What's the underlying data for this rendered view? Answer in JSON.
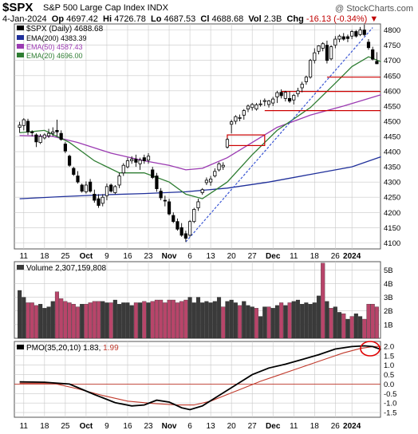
{
  "header": {
    "symbol": "$SPX",
    "description": "S&P 500 Large Cap Index  INDX",
    "source": "@ StockCharts.com",
    "date": "4-Jan-2024",
    "open_label": "Op",
    "open": "4697.42",
    "high_label": "Hi",
    "high": "4726.78",
    "low_label": "Lo",
    "low": "4687.53",
    "close_label": "Cl",
    "close": "4688.68",
    "vol_label": "Vol",
    "volume": "2.3B",
    "chg_label": "Chg",
    "change": "-16.13 (-0.34%)"
  },
  "colors": {
    "ema200": "#1f2f9a",
    "ema50": "#9b3ab2",
    "ema20": "#2e7d32",
    "trendline": "#3a56d4",
    "resistance": "#cc0000",
    "vol_up": "#3a3a3a",
    "vol_down": "#b8456a",
    "pmo": "#000000",
    "pmo_signal": "#c0392b",
    "grid": "#c8c8c8"
  },
  "legend": [
    {
      "label": "$SPX (Daily) 4688.68",
      "color": "#000000"
    },
    {
      "label": "EMA(200) 4383.39",
      "color": "#1f2f9a"
    },
    {
      "label": "EMA(50) 4587.43",
      "color": "#9b3ab2"
    },
    {
      "label": "EMA(20) 4696.00",
      "color": "#2e7d32"
    }
  ],
  "volume_panel": {
    "title": "Volume 2,307,159,808"
  },
  "pmo_panel": {
    "title": "PMO(35,20,10) 1.83, ",
    "signal_value": "1.99"
  },
  "chart_data": [
    {
      "type": "candlestick",
      "title": "$SPX (Daily)",
      "y_ticks": [
        4100,
        4150,
        4200,
        4250,
        4300,
        4350,
        4400,
        4450,
        4500,
        4550,
        4600,
        4650,
        4700,
        4750,
        4800
      ],
      "ylim": [
        4080,
        4820
      ],
      "x_labels": [
        "11",
        "18",
        "25",
        "Oct",
        "9",
        "16",
        "23",
        "Nov",
        "6",
        "13",
        "20",
        "27",
        "Dec",
        "11",
        "18",
        "26",
        "2024"
      ],
      "x_label_bars": [
        1,
        6,
        11,
        16,
        21,
        26,
        31,
        36,
        41,
        46,
        51,
        56,
        61,
        66,
        71,
        76,
        80
      ],
      "ohlc": [
        [
          4480,
          4498,
          4462,
          4487
        ],
        [
          4486,
          4510,
          4470,
          4505
        ],
        [
          4500,
          4508,
          4455,
          4465
        ],
        [
          4465,
          4470,
          4450,
          4462
        ],
        [
          4455,
          4460,
          4415,
          4432
        ],
        [
          4430,
          4458,
          4425,
          4450
        ],
        [
          4445,
          4460,
          4440,
          4455
        ],
        [
          4452,
          4475,
          4445,
          4460
        ],
        [
          4460,
          4480,
          4450,
          4465
        ],
        [
          4470,
          4505,
          4450,
          4465
        ],
        [
          4460,
          4470,
          4436,
          4440
        ],
        [
          4425,
          4432,
          4395,
          4402
        ],
        [
          4385,
          4390,
          4350,
          4355
        ],
        [
          4345,
          4350,
          4320,
          4325
        ],
        [
          4320,
          4336,
          4295,
          4300
        ],
        [
          4290,
          4295,
          4265,
          4270
        ],
        [
          4268,
          4302,
          4262,
          4290
        ],
        [
          4300,
          4310,
          4265,
          4270
        ],
        [
          4260,
          4275,
          4232,
          4240
        ],
        [
          4245,
          4260,
          4215,
          4223
        ],
        [
          4230,
          4260,
          4220,
          4250
        ],
        [
          4255,
          4295,
          4240,
          4285
        ],
        [
          4290,
          4295,
          4265,
          4270
        ],
        [
          4265,
          4290,
          4260,
          4285
        ],
        [
          4290,
          4330,
          4280,
          4320
        ],
        [
          4330,
          4362,
          4320,
          4355
        ],
        [
          4350,
          4380,
          4345,
          4370
        ],
        [
          4370,
          4385,
          4360,
          4375
        ],
        [
          4375,
          4390,
          4350,
          4365
        ],
        [
          4360,
          4380,
          4340,
          4372
        ],
        [
          4380,
          4390,
          4360,
          4370
        ],
        [
          4372,
          4395,
          4360,
          4385
        ],
        [
          4340,
          4350,
          4310,
          4315
        ],
        [
          4320,
          4330,
          4268,
          4278
        ],
        [
          4270,
          4280,
          4240,
          4248
        ],
        [
          4240,
          4255,
          4220,
          4238
        ],
        [
          4235,
          4245,
          4190,
          4195
        ],
        [
          4190,
          4200,
          4165,
          4170
        ],
        [
          4170,
          4180,
          4140,
          4145
        ],
        [
          4150,
          4165,
          4120,
          4125
        ],
        [
          4130,
          4140,
          4103,
          4115
        ],
        [
          4125,
          4175,
          4120,
          4170
        ],
        [
          4170,
          4215,
          4165,
          4210
        ],
        [
          4215,
          4245,
          4205,
          4235
        ],
        [
          4265,
          4280,
          4258,
          4275
        ],
        [
          4298,
          4315,
          4290,
          4306
        ],
        [
          4300,
          4320,
          4288,
          4310
        ],
        [
          4320,
          4345,
          4315,
          4335
        ],
        [
          4340,
          4365,
          4335,
          4360
        ],
        [
          4350,
          4365,
          4340,
          4355
        ],
        [
          4415,
          4445,
          4410,
          4440
        ],
        [
          4490,
          4505,
          4460,
          4498
        ],
        [
          4500,
          4520,
          4490,
          4515
        ],
        [
          4510,
          4522,
          4500,
          4512
        ],
        [
          4520,
          4540,
          4505,
          4535
        ],
        [
          4540,
          4555,
          4530,
          4550
        ],
        [
          4545,
          4560,
          4535,
          4555
        ],
        [
          4540,
          4560,
          4535,
          4554
        ],
        [
          4555,
          4570,
          4548,
          4557
        ],
        [
          4565,
          4575,
          4550,
          4568
        ],
        [
          4555,
          4570,
          4545,
          4567
        ],
        [
          4560,
          4580,
          4550,
          4573
        ],
        [
          4580,
          4600,
          4560,
          4594
        ],
        [
          4595,
          4605,
          4575,
          4584
        ],
        [
          4575,
          4600,
          4565,
          4595
        ],
        [
          4575,
          4598,
          4560,
          4566
        ],
        [
          4570,
          4590,
          4555,
          4585
        ],
        [
          4590,
          4610,
          4580,
          4600
        ],
        [
          4610,
          4630,
          4595,
          4622
        ],
        [
          4630,
          4650,
          4620,
          4645
        ],
        [
          4645,
          4705,
          4640,
          4700
        ],
        [
          4700,
          4740,
          4690,
          4725
        ],
        [
          4730,
          4750,
          4720,
          4748
        ],
        [
          4740,
          4760,
          4730,
          4755
        ],
        [
          4750,
          4765,
          4690,
          4700
        ],
        [
          4705,
          4750,
          4700,
          4745
        ],
        [
          4750,
          4780,
          4740,
          4770
        ],
        [
          4770,
          4785,
          4760,
          4780
        ],
        [
          4778,
          4790,
          4765,
          4770
        ],
        [
          4778,
          4785,
          4760,
          4772
        ],
        [
          4780,
          4800,
          4770,
          4795
        ],
        [
          4795,
          4800,
          4775,
          4780
        ],
        [
          4785,
          4810,
          4780,
          4800
        ],
        [
          4800,
          4818,
          4780,
          4785
        ],
        [
          4760,
          4770,
          4735,
          4742
        ],
        [
          4735,
          4745,
          4700,
          4704
        ],
        [
          4697,
          4727,
          4688,
          4689
        ]
      ],
      "ema200": [
        [
          0,
          4245
        ],
        [
          10,
          4252
        ],
        [
          20,
          4258
        ],
        [
          30,
          4262
        ],
        [
          40,
          4268
        ],
        [
          50,
          4280
        ],
        [
          60,
          4300
        ],
        [
          70,
          4325
        ],
        [
          80,
          4350
        ],
        [
          87,
          4383
        ]
      ],
      "ema50": [
        [
          0,
          4453
        ],
        [
          8,
          4450
        ],
        [
          14,
          4430
        ],
        [
          22,
          4395
        ],
        [
          30,
          4370
        ],
        [
          36,
          4355
        ],
        [
          40,
          4340
        ],
        [
          44,
          4345
        ],
        [
          50,
          4380
        ],
        [
          56,
          4430
        ],
        [
          62,
          4480
        ],
        [
          70,
          4520
        ],
        [
          78,
          4550
        ],
        [
          87,
          4587
        ]
      ],
      "ema20": [
        [
          0,
          4462
        ],
        [
          6,
          4470
        ],
        [
          12,
          4430
        ],
        [
          18,
          4370
        ],
        [
          24,
          4330
        ],
        [
          30,
          4330
        ],
        [
          36,
          4300
        ],
        [
          40,
          4260
        ],
        [
          44,
          4245
        ],
        [
          50,
          4300
        ],
        [
          56,
          4390
        ],
        [
          62,
          4470
        ],
        [
          70,
          4545
        ],
        [
          76,
          4625
        ],
        [
          80,
          4680
        ],
        [
          84,
          4712
        ],
        [
          87,
          4696
        ]
      ],
      "trendline": [
        [
          40,
          4103
        ],
        [
          85,
          4808
        ]
      ],
      "resistance_box": {
        "x0": 50,
        "x1": 59,
        "y0": 4420,
        "y1": 4455
      },
      "resistance_lines": [
        {
          "x0": 74,
          "x1": 87,
          "y": 4645
        },
        {
          "x0": 63,
          "x1": 87,
          "y": 4598
        },
        {
          "x0": 59,
          "x1": 87,
          "y": 4535
        }
      ]
    },
    {
      "type": "bar",
      "title": "Volume 2,307,159,808",
      "y_ticks": [
        "5B",
        "4B",
        "3B",
        "2B",
        "1B"
      ],
      "y_tick_values": [
        5,
        4,
        3,
        2,
        1
      ],
      "ylim": [
        0,
        5.6
      ],
      "values": [
        3.5,
        3.0,
        2.6,
        2.6,
        2.4,
        2.5,
        2.2,
        2.3,
        2.7,
        3.4,
        2.9,
        2.7,
        2.6,
        2.5,
        2.3,
        2.5,
        2.5,
        2.6,
        2.7,
        2.7,
        2.7,
        2.6,
        2.6,
        2.8,
        2.5,
        2.6,
        2.6,
        2.4,
        2.6,
        2.6,
        2.7,
        2.6,
        2.7,
        2.8,
        2.8,
        2.6,
        2.8,
        2.8,
        2.6,
        2.7,
        2.8,
        3.0,
        2.6,
        3.0,
        2.6,
        2.7,
        2.6,
        2.7,
        3.0,
        2.3,
        2.7,
        2.8,
        2.6,
        2.4,
        2.7,
        2.4,
        2.3,
        2.2,
        1.6,
        2.3,
        2.3,
        2.2,
        2.4,
        2.6,
        2.4,
        2.6,
        2.7,
        2.8,
        2.5,
        2.6,
        2.5,
        2.6,
        3.1,
        5.5,
        2.7,
        2.2,
        2.3,
        1.9,
        1.8,
        1.4,
        1.6,
        1.8,
        1.6,
        1.4,
        2.5,
        2.5,
        2.3
      ],
      "down": [
        0,
        0,
        1,
        1,
        1,
        0,
        0,
        0,
        0,
        1,
        1,
        1,
        1,
        1,
        1,
        0,
        1,
        1,
        1,
        1,
        0,
        0,
        1,
        0,
        0,
        0,
        0,
        0,
        1,
        0,
        1,
        0,
        1,
        1,
        1,
        1,
        1,
        1,
        1,
        1,
        1,
        0,
        0,
        0,
        0,
        0,
        0,
        0,
        0,
        1,
        0,
        0,
        0,
        1,
        0,
        0,
        0,
        1,
        0,
        0,
        1,
        0,
        0,
        1,
        0,
        1,
        0,
        0,
        0,
        0,
        0,
        0,
        0,
        1,
        0,
        1,
        0,
        0,
        1,
        0,
        1,
        0,
        0,
        1,
        1,
        1,
        1
      ]
    },
    {
      "type": "line",
      "title": "PMO(35,20,10)",
      "y_ticks": [
        2.0,
        1.5,
        1.0,
        0.5,
        0.0,
        -0.5,
        -1.0,
        -1.5
      ],
      "ylim": [
        -1.75,
        2.25
      ],
      "series": [
        {
          "name": "PMO",
          "points": [
            [
              0,
              0.12
            ],
            [
              6,
              0.1
            ],
            [
              12,
              0.0
            ],
            [
              18,
              -0.55
            ],
            [
              23,
              -0.98
            ],
            [
              27,
              -1.15
            ],
            [
              30,
              -1.1
            ],
            [
              33,
              -0.85
            ],
            [
              36,
              -0.95
            ],
            [
              39,
              -1.25
            ],
            [
              41,
              -1.35
            ],
            [
              44,
              -1.15
            ],
            [
              48,
              -0.6
            ],
            [
              52,
              -0.05
            ],
            [
              56,
              0.5
            ],
            [
              60,
              0.85
            ],
            [
              64,
              1.05
            ],
            [
              68,
              1.3
            ],
            [
              72,
              1.55
            ],
            [
              76,
              1.85
            ],
            [
              80,
              1.98
            ],
            [
              83,
              2.02
            ],
            [
              85,
              1.98
            ],
            [
              87,
              1.83
            ]
          ]
        },
        {
          "name": "signal",
          "points": [
            [
              0,
              0.05
            ],
            [
              8,
              0.05
            ],
            [
              14,
              -0.25
            ],
            [
              20,
              -0.6
            ],
            [
              26,
              -0.9
            ],
            [
              32,
              -1.02
            ],
            [
              38,
              -1.1
            ],
            [
              42,
              -1.1
            ],
            [
              46,
              -0.9
            ],
            [
              50,
              -0.55
            ],
            [
              54,
              -0.2
            ],
            [
              58,
              0.15
            ],
            [
              62,
              0.45
            ],
            [
              66,
              0.75
            ],
            [
              70,
              1.05
            ],
            [
              74,
              1.35
            ],
            [
              78,
              1.65
            ],
            [
              82,
              1.88
            ],
            [
              85,
              1.98
            ],
            [
              87,
              1.99
            ]
          ]
        }
      ],
      "zero_line": 0.0
    }
  ]
}
